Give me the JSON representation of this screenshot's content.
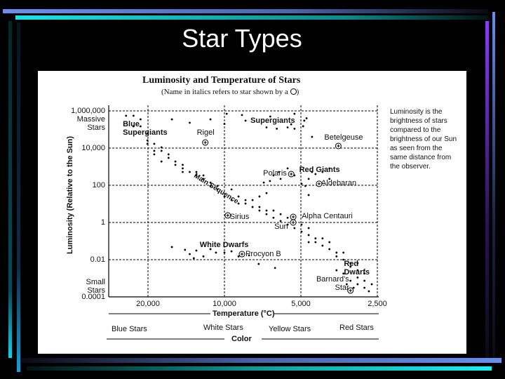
{
  "slide": {
    "title": "Star Types"
  },
  "colors": {
    "top_bar": "#6a8ff0",
    "accent_bar": "#16e6e6",
    "purple_bar": "#8a3df0",
    "background": "#000000"
  },
  "chart_data": {
    "type": "scatter",
    "title": "Luminosity and Temperature of Stars",
    "subtitle": "(Name in italics refers to star shown by a",
    "subtitle_end": ")",
    "xlabel": "Temperature (°C)",
    "ylabel": "Luminosity (Relative to the Sun)",
    "x_scale": "log (reversed)",
    "y_scale": "log",
    "xlim": [
      28500,
      2400
    ],
    "ylim": [
      0.0001,
      1000000
    ],
    "grid": true,
    "x_ticks": [
      {
        "value": 20000,
        "label": "20,000"
      },
      {
        "value": 10000,
        "label": "10,000"
      },
      {
        "value": 5000,
        "label": "5,000"
      },
      {
        "value": 2500,
        "label": "2,500"
      }
    ],
    "y_ticks": [
      {
        "value": 1000000,
        "label": "1,000,000"
      },
      {
        "value": 10000,
        "label": "10,000"
      },
      {
        "value": 100,
        "label": "100"
      },
      {
        "value": 1,
        "label": "1"
      },
      {
        "value": 0.01,
        "label": "0.01"
      },
      {
        "value": 0.0001,
        "label": "0.0001"
      }
    ],
    "y_annotations": {
      "top": "Massive Stars",
      "bottom": "Small Stars"
    },
    "color_band": {
      "label": "Color",
      "items": [
        "Blue Stars",
        "White Stars",
        "Yellow Stars",
        "Red Stars"
      ]
    },
    "side_note": "Luminosity is the brightness of stars compared to the brightness of our Sun as seen from the same distance from the observer.",
    "regions": [
      {
        "label": "Blue Supergiants",
        "T": 24500,
        "L": 200000
      },
      {
        "label": "Supergiants",
        "T": 7700,
        "L": 300000
      },
      {
        "label": "Red Giants",
        "T": 4950,
        "L": 700
      },
      {
        "label": "Main Sequence",
        "T": 12600,
        "L": 300
      },
      {
        "label": "White Dwarfs",
        "T": 12200,
        "L": 0.06
      },
      {
        "label": "Red Dwarfs",
        "T": 3300,
        "L": 0.006
      }
    ],
    "named_stars": [
      {
        "name": "Rigel",
        "T": 11900,
        "L": 20000
      },
      {
        "name": "Betelgeuse",
        "T": 3560,
        "L": 13000
      },
      {
        "name": "Polaris",
        "T": 5460,
        "L": 400
      },
      {
        "name": "Aldebaran",
        "T": 4240,
        "L": 120
      },
      {
        "name": "Sirius",
        "T": 9700,
        "L": 2.4
      },
      {
        "name": "Alpha Centauri",
        "T": 5360,
        "L": 2
      },
      {
        "name": "Sun",
        "T": 5360,
        "L": 1
      },
      {
        "name": "Procyon B",
        "T": 8530,
        "L": 0.02
      },
      {
        "name": "Barnard's Star",
        "T": 3190,
        "L": 0.00022
      }
    ],
    "stars": [
      [
        24400,
        550000
      ],
      [
        22800,
        550000
      ],
      [
        21400,
        350000
      ],
      [
        22800,
        148000
      ],
      [
        21400,
        148000
      ],
      [
        20100,
        62000
      ],
      [
        20100,
        26000
      ],
      [
        20100,
        17000
      ],
      [
        18900,
        17000
      ],
      [
        18900,
        7100
      ],
      [
        17700,
        11000
      ],
      [
        17700,
        7100
      ],
      [
        18900,
        4600
      ],
      [
        16600,
        3000
      ],
      [
        16600,
        4600
      ],
      [
        17700,
        1900
      ],
      [
        15600,
        1900
      ],
      [
        15600,
        1250
      ],
      [
        14600,
        1250
      ],
      [
        14600,
        810
      ],
      [
        13700,
        520
      ],
      [
        14600,
        520
      ],
      [
        12900,
        340
      ],
      [
        12900,
        520
      ],
      [
        12100,
        220
      ],
      [
        12100,
        340
      ],
      [
        11350,
        140
      ],
      [
        11350,
        92
      ],
      [
        10650,
        60
      ],
      [
        10650,
        92
      ],
      [
        10000,
        25
      ],
      [
        9380,
        60
      ],
      [
        9380,
        16
      ],
      [
        8800,
        25
      ],
      [
        8800,
        10.4
      ],
      [
        8260,
        16
      ],
      [
        8260,
        10.4
      ],
      [
        7750,
        6.8
      ],
      [
        7750,
        16
      ],
      [
        7280,
        4.4
      ],
      [
        7280,
        6.8
      ],
      [
        6830,
        2.8
      ],
      [
        6830,
        4.4
      ],
      [
        6410,
        1.8
      ],
      [
        6410,
        4.4
      ],
      [
        6010,
        1.2
      ],
      [
        6010,
        2.8
      ],
      [
        5640,
        0.77
      ],
      [
        5640,
        1.8
      ],
      [
        5300,
        0.5
      ],
      [
        4970,
        0.32
      ],
      [
        4970,
        0.77
      ],
      [
        4660,
        0.21
      ],
      [
        4660,
        0.5
      ],
      [
        4660,
        0.088
      ],
      [
        4380,
        0.14
      ],
      [
        4380,
        0.088
      ],
      [
        4110,
        0.057
      ],
      [
        4110,
        0.14
      ],
      [
        3860,
        0.037
      ],
      [
        3860,
        0.088
      ],
      [
        3620,
        0.024
      ],
      [
        3620,
        0.015
      ],
      [
        3400,
        0.01
      ],
      [
        3400,
        0.024
      ],
      [
        3190,
        0.0065
      ],
      [
        3190,
        0.0042
      ],
      [
        2990,
        0.0027
      ],
      [
        2990,
        0.0065
      ],
      [
        2810,
        0.0018
      ],
      [
        2810,
        0.00074
      ],
      [
        2990,
        0.0011
      ],
      [
        3190,
        0.00074
      ],
      [
        2990,
        0.00048
      ],
      [
        2810,
        0.00031
      ],
      [
        2630,
        0.00048
      ],
      [
        3100,
        0.00031
      ],
      [
        3400,
        0.0018
      ],
      [
        3620,
        0.0027
      ],
      [
        2700,
        0.0002
      ],
      [
        3300,
        0.00048
      ],
      [
        16100,
        350000
      ],
      [
        13700,
        230000
      ],
      [
        11350,
        350000
      ],
      [
        10000,
        200000
      ],
      [
        9800,
        700000
      ],
      [
        8530,
        600000
      ],
      [
        8260,
        300000
      ],
      [
        6600,
        500000
      ],
      [
        6830,
        130000
      ],
      [
        6220,
        110000
      ],
      [
        5640,
        130000
      ],
      [
        5460,
        190000
      ],
      [
        5300,
        110000
      ],
      [
        4900,
        150000
      ],
      [
        4850,
        300000
      ],
      [
        4750,
        400000
      ],
      [
        4520,
        40000
      ],
      [
        5300,
        700000
      ],
      [
        6830,
        38
      ],
      [
        6620,
        170
      ],
      [
        6410,
        340
      ],
      [
        6100,
        520
      ],
      [
        6010,
        220
      ],
      [
        5640,
        810
      ],
      [
        5300,
        340
      ],
      [
        4970,
        120
      ],
      [
        4660,
        220
      ],
      [
        4380,
        400
      ],
      [
        4110,
        520
      ],
      [
        3860,
        810
      ],
      [
        4800,
        92
      ],
      [
        4520,
        520
      ],
      [
        4240,
        120
      ],
      [
        3860,
        220
      ],
      [
        7000,
        140
      ],
      [
        7280,
        25
      ],
      [
        4660,
        30
      ],
      [
        16100,
        0.048
      ],
      [
        14300,
        0.034
      ],
      [
        13700,
        0.02
      ],
      [
        12900,
        0.031
      ],
      [
        11350,
        0.037
      ],
      [
        10800,
        0.024
      ],
      [
        10000,
        0.024
      ],
      [
        9380,
        0.028
      ],
      [
        8800,
        0.015
      ],
      [
        8000,
        0.017
      ],
      [
        13200,
        0.012
      ],
      [
        12100,
        0.015
      ],
      [
        7330,
        0.0059
      ],
      [
        6320,
        0.0036
      ]
    ]
  }
}
